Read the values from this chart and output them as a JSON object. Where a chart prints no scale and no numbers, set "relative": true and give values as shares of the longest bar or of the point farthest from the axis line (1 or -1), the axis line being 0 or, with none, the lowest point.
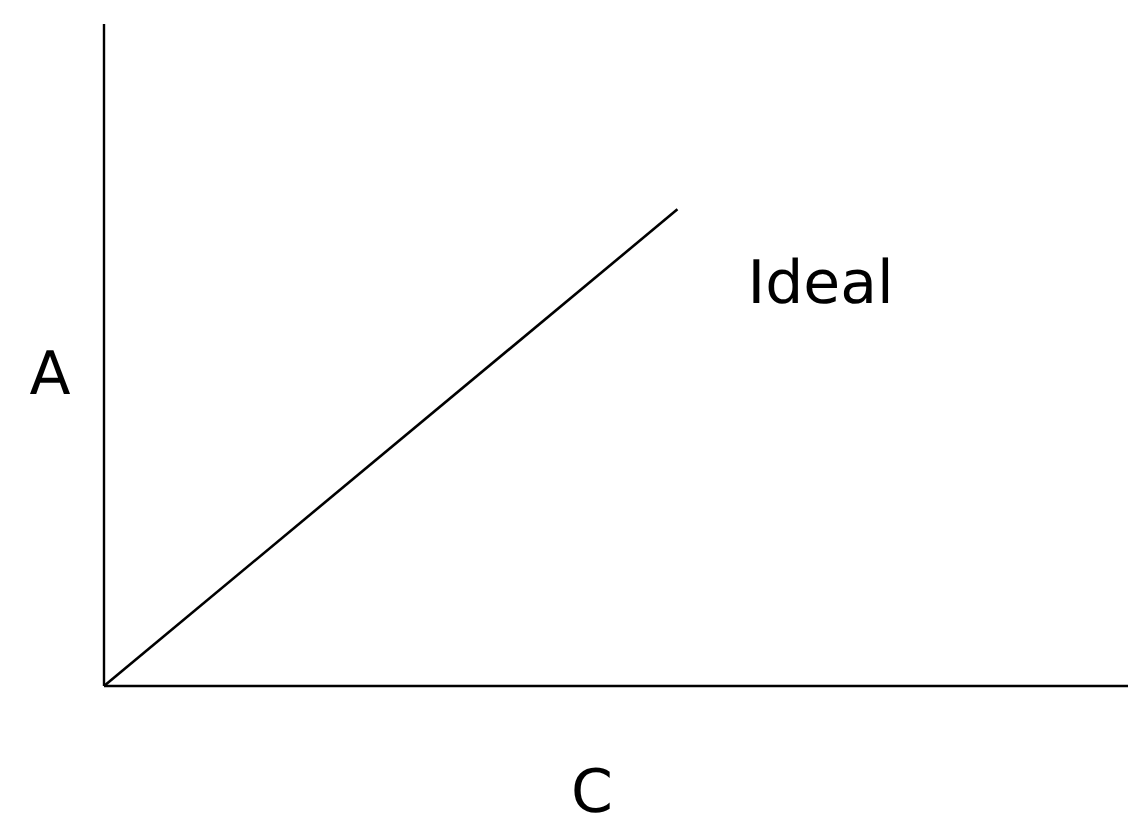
{
  "chart_data": {
    "type": "line",
    "relative": true,
    "xlabel": "C",
    "ylabel": "A",
    "categories": [
      null,
      null
    ],
    "series": [
      {
        "color": "#000000",
        "values": [
          0,
          1
        ]
      }
    ],
    "annotations": [
      "Ideal"
    ]
  }
}
